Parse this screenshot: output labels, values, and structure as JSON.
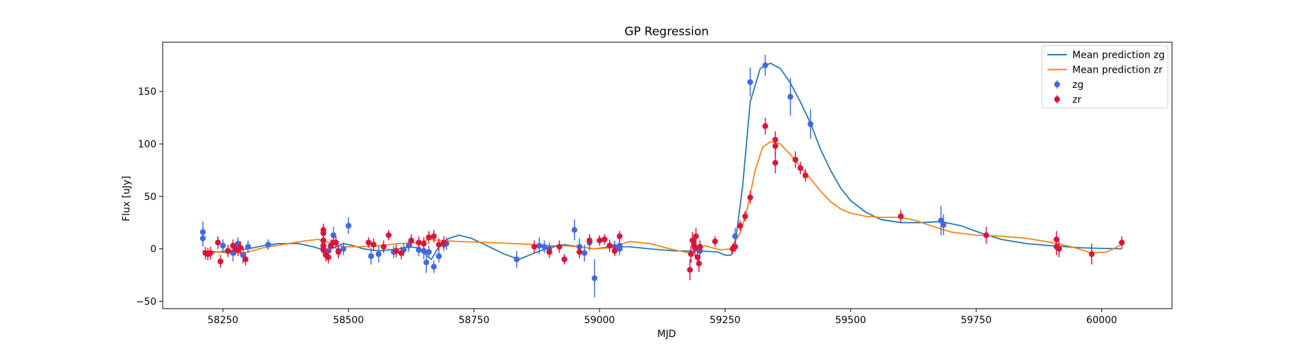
{
  "chart_data": {
    "type": "scatter",
    "title": "GP Regression",
    "xlabel": "MJD",
    "ylabel": "Flux [uJy]",
    "xlim": [
      58130,
      60140
    ],
    "ylim": [
      -57,
      197
    ],
    "xticks": [
      58250,
      58500,
      58750,
      59000,
      59250,
      59500,
      59750,
      60000
    ],
    "yticks": [
      -50,
      0,
      50,
      100,
      150
    ],
    "grid": false,
    "legend_placement": "top-right",
    "legend": [
      {
        "label": "Mean prediction zg",
        "kind": "line",
        "color": "#1f77b4"
      },
      {
        "label": "Mean prediction zr",
        "kind": "line",
        "color": "#ff7f0e"
      },
      {
        "label": "zg",
        "kind": "errorbar",
        "color": "#4169e1"
      },
      {
        "label": "zr",
        "kind": "errorbar",
        "color": "#dc143c"
      }
    ],
    "series": [
      {
        "name": "Mean prediction zg",
        "kind": "line",
        "color": "#1f77b4",
        "points": [
          [
            58210,
            -2
          ],
          [
            58240,
            -3
          ],
          [
            58260,
            -2
          ],
          [
            58280,
            -1
          ],
          [
            58300,
            0
          ],
          [
            58330,
            3
          ],
          [
            58360,
            5
          ],
          [
            58400,
            5
          ],
          [
            58430,
            2
          ],
          [
            58450,
            -1
          ],
          [
            58470,
            1
          ],
          [
            58490,
            5
          ],
          [
            58510,
            3
          ],
          [
            58530,
            0
          ],
          [
            58560,
            -2
          ],
          [
            58600,
            0
          ],
          [
            58620,
            2
          ],
          [
            58640,
            1
          ],
          [
            58655,
            -6
          ],
          [
            58665,
            -10
          ],
          [
            58680,
            2
          ],
          [
            58700,
            10
          ],
          [
            58720,
            13
          ],
          [
            58745,
            10
          ],
          [
            58780,
            2
          ],
          [
            58810,
            -5
          ],
          [
            58840,
            -10
          ],
          [
            58870,
            -4
          ],
          [
            58900,
            1
          ],
          [
            58930,
            4
          ],
          [
            58960,
            2
          ],
          [
            58990,
            0
          ],
          [
            59020,
            2
          ],
          [
            59060,
            2
          ],
          [
            59100,
            0
          ],
          [
            59150,
            -2
          ],
          [
            59200,
            -2
          ],
          [
            59235,
            -3
          ],
          [
            59250,
            -6
          ],
          [
            59262,
            -6
          ],
          [
            59270,
            4
          ],
          [
            59285,
            60
          ],
          [
            59300,
            140
          ],
          [
            59320,
            172
          ],
          [
            59340,
            177
          ],
          [
            59360,
            172
          ],
          [
            59380,
            158
          ],
          [
            59400,
            140
          ],
          [
            59420,
            120
          ],
          [
            59440,
            95
          ],
          [
            59460,
            75
          ],
          [
            59480,
            58
          ],
          [
            59500,
            46
          ],
          [
            59530,
            35
          ],
          [
            59560,
            28
          ],
          [
            59600,
            25
          ],
          [
            59640,
            25
          ],
          [
            59680,
            26
          ],
          [
            59720,
            22
          ],
          [
            59760,
            15
          ],
          [
            59800,
            9
          ],
          [
            59850,
            5
          ],
          [
            59900,
            3
          ],
          [
            59960,
            1
          ],
          [
            60040,
            0
          ]
        ]
      },
      {
        "name": "Mean prediction zr",
        "kind": "line",
        "color": "#ff7f0e",
        "points": [
          [
            58210,
            -5
          ],
          [
            58240,
            -3
          ],
          [
            58270,
            -4
          ],
          [
            58300,
            -3
          ],
          [
            58330,
            1
          ],
          [
            58380,
            5
          ],
          [
            58420,
            8
          ],
          [
            58440,
            9
          ],
          [
            58460,
            6
          ],
          [
            58490,
            2
          ],
          [
            58520,
            2
          ],
          [
            58560,
            3
          ],
          [
            58600,
            5
          ],
          [
            58640,
            6
          ],
          [
            58660,
            9
          ],
          [
            58680,
            8
          ],
          [
            58720,
            7
          ],
          [
            58780,
            6
          ],
          [
            58830,
            5
          ],
          [
            58870,
            4
          ],
          [
            58900,
            3
          ],
          [
            58930,
            3
          ],
          [
            58960,
            2
          ],
          [
            58990,
            0
          ],
          [
            59020,
            1
          ],
          [
            59060,
            7
          ],
          [
            59100,
            5
          ],
          [
            59140,
            0
          ],
          [
            59180,
            -4
          ],
          [
            59210,
            3
          ],
          [
            59240,
            -1
          ],
          [
            59260,
            0
          ],
          [
            59280,
            15
          ],
          [
            59295,
            40
          ],
          [
            59310,
            75
          ],
          [
            59325,
            97
          ],
          [
            59340,
            102
          ],
          [
            59360,
            100
          ],
          [
            59380,
            90
          ],
          [
            59400,
            78
          ],
          [
            59420,
            67
          ],
          [
            59440,
            55
          ],
          [
            59460,
            45
          ],
          [
            59480,
            38
          ],
          [
            59500,
            34
          ],
          [
            59530,
            31
          ],
          [
            59560,
            30
          ],
          [
            59600,
            30
          ],
          [
            59630,
            27
          ],
          [
            59660,
            22
          ],
          [
            59700,
            16
          ],
          [
            59750,
            13
          ],
          [
            59800,
            12
          ],
          [
            59850,
            10
          ],
          [
            59900,
            6
          ],
          [
            59940,
            2
          ],
          [
            59980,
            -4
          ],
          [
            60010,
            -3
          ],
          [
            60040,
            4
          ]
        ]
      },
      {
        "name": "zg",
        "kind": "errorbar",
        "color": "#4169e1",
        "points": [
          [
            58210,
            16,
            10
          ],
          [
            58210,
            10,
            8
          ],
          [
            58250,
            3,
            6
          ],
          [
            58260,
            -2,
            6
          ],
          [
            58270,
            -4,
            8
          ],
          [
            58280,
            5,
            6
          ],
          [
            58290,
            -6,
            8
          ],
          [
            58300,
            2,
            6
          ],
          [
            58340,
            4,
            5
          ],
          [
            58450,
            2,
            8
          ],
          [
            58460,
            -2,
            6
          ],
          [
            58470,
            13,
            8
          ],
          [
            58480,
            -2,
            6
          ],
          [
            58490,
            0,
            6
          ],
          [
            58500,
            22,
            8
          ],
          [
            58545,
            -7,
            8
          ],
          [
            58560,
            -5,
            8
          ],
          [
            58590,
            -3,
            6
          ],
          [
            58610,
            -1,
            6
          ],
          [
            58620,
            3,
            6
          ],
          [
            58640,
            -1,
            6
          ],
          [
            58650,
            -2,
            8
          ],
          [
            58655,
            -13,
            10
          ],
          [
            58660,
            -3,
            6
          ],
          [
            58670,
            -17,
            6
          ],
          [
            58680,
            -7,
            6
          ],
          [
            58690,
            4,
            6
          ],
          [
            58695,
            5,
            6
          ],
          [
            58835,
            -10,
            8
          ],
          [
            58880,
            3,
            8
          ],
          [
            58890,
            2,
            6
          ],
          [
            58900,
            0,
            6
          ],
          [
            58950,
            18,
            10
          ],
          [
            58960,
            2,
            8
          ],
          [
            58970,
            -4,
            8
          ],
          [
            58980,
            6,
            8
          ],
          [
            58990,
            -28,
            18
          ],
          [
            59020,
            3,
            6
          ],
          [
            59030,
            2,
            6
          ],
          [
            59040,
            3,
            6
          ],
          [
            59040,
            0,
            6
          ],
          [
            59200,
            -2,
            8
          ],
          [
            59270,
            12,
            8
          ],
          [
            59300,
            159,
            14
          ],
          [
            59330,
            175,
            10
          ],
          [
            59380,
            145,
            18
          ],
          [
            59420,
            119,
            14
          ],
          [
            59680,
            27,
            14
          ],
          [
            59685,
            23,
            10
          ]
        ]
      },
      {
        "name": "zr",
        "kind": "errorbar",
        "color": "#dc143c",
        "points": [
          [
            58215,
            -4,
            6
          ],
          [
            58220,
            -5,
            6
          ],
          [
            58225,
            -4,
            6
          ],
          [
            58240,
            6,
            6
          ],
          [
            58245,
            -12,
            6
          ],
          [
            58260,
            -2,
            5
          ],
          [
            58270,
            3,
            6
          ],
          [
            58275,
            0,
            6
          ],
          [
            58280,
            -1,
            6
          ],
          [
            58285,
            1,
            6
          ],
          [
            58295,
            -10,
            6
          ],
          [
            58450,
            18,
            6
          ],
          [
            58450,
            15,
            6
          ],
          [
            58450,
            8,
            6
          ],
          [
            58450,
            3,
            6
          ],
          [
            58450,
            -1,
            6
          ],
          [
            58455,
            -6,
            6
          ],
          [
            58460,
            -8,
            6
          ],
          [
            58465,
            3,
            6
          ],
          [
            58470,
            6,
            6
          ],
          [
            58475,
            6,
            6
          ],
          [
            58480,
            -3,
            6
          ],
          [
            58540,
            6,
            5
          ],
          [
            58550,
            4,
            6
          ],
          [
            58570,
            2,
            6
          ],
          [
            58580,
            13,
            5
          ],
          [
            58595,
            -2,
            6
          ],
          [
            58605,
            -4,
            6
          ],
          [
            58625,
            8,
            6
          ],
          [
            58640,
            6,
            6
          ],
          [
            58650,
            5,
            6
          ],
          [
            58660,
            11,
            6
          ],
          [
            58670,
            12,
            6
          ],
          [
            58680,
            4,
            6
          ],
          [
            58690,
            6,
            6
          ],
          [
            58870,
            2,
            6
          ],
          [
            58900,
            -3,
            6
          ],
          [
            58920,
            2,
            6
          ],
          [
            58930,
            -10,
            5
          ],
          [
            58960,
            -3,
            6
          ],
          [
            58980,
            8,
            6
          ],
          [
            59000,
            8,
            5
          ],
          [
            59010,
            9,
            5
          ],
          [
            59020,
            3,
            5
          ],
          [
            59030,
            -2,
            5
          ],
          [
            59040,
            12,
            5
          ],
          [
            59180,
            -20,
            10
          ],
          [
            59182,
            -5,
            8
          ],
          [
            59185,
            8,
            8
          ],
          [
            59188,
            4,
            8
          ],
          [
            59190,
            1,
            8
          ],
          [
            59192,
            12,
            8
          ],
          [
            59195,
            -8,
            8
          ],
          [
            59198,
            -14,
            8
          ],
          [
            59200,
            2,
            6
          ],
          [
            59230,
            7,
            5
          ],
          [
            59265,
            0,
            5
          ],
          [
            59270,
            2,
            5
          ],
          [
            59280,
            22,
            5
          ],
          [
            59290,
            31,
            5
          ],
          [
            59300,
            49,
            6
          ],
          [
            59330,
            117,
            8
          ],
          [
            59350,
            104,
            8
          ],
          [
            59350,
            98,
            8
          ],
          [
            59350,
            82,
            10
          ],
          [
            59390,
            85,
            8
          ],
          [
            59400,
            77,
            6
          ],
          [
            59410,
            70,
            6
          ],
          [
            59600,
            31,
            6
          ],
          [
            59770,
            13,
            8
          ],
          [
            59910,
            9,
            8
          ],
          [
            59910,
            2,
            8
          ],
          [
            59915,
            0,
            8
          ],
          [
            59980,
            -5,
            10
          ],
          [
            60040,
            6,
            6
          ]
        ]
      }
    ]
  }
}
